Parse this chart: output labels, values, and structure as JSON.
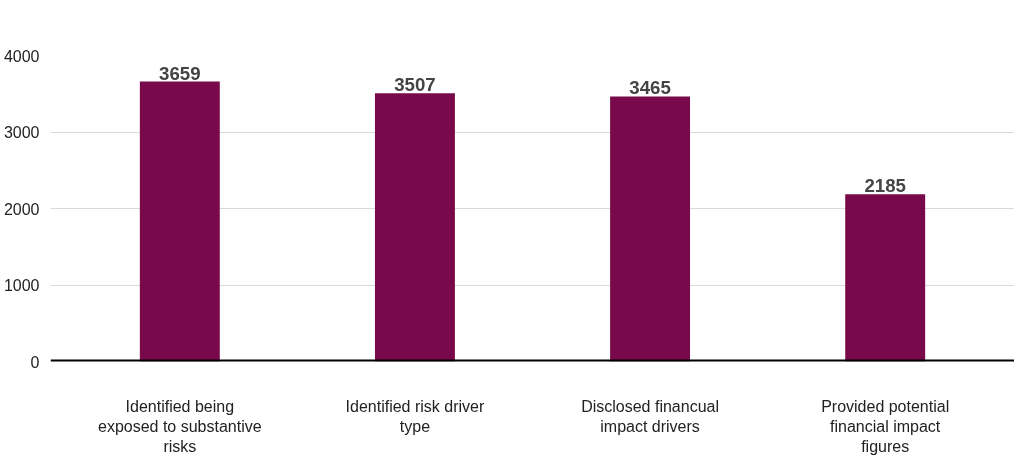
{
  "chart_data": {
    "type": "bar",
    "categories": [
      "Identified being exposed to substantive risks",
      "Identified risk driver type",
      "Disclosed financual impact drivers",
      "Provided potential financial impact figures"
    ],
    "values": [
      3659,
      3507,
      3465,
      2185
    ],
    "color": "#780a4b",
    "data_labels": true,
    "ylim": [
      0,
      4000
    ],
    "yticks": [
      0,
      1000,
      2000,
      3000,
      4000
    ],
    "grid": "y"
  }
}
